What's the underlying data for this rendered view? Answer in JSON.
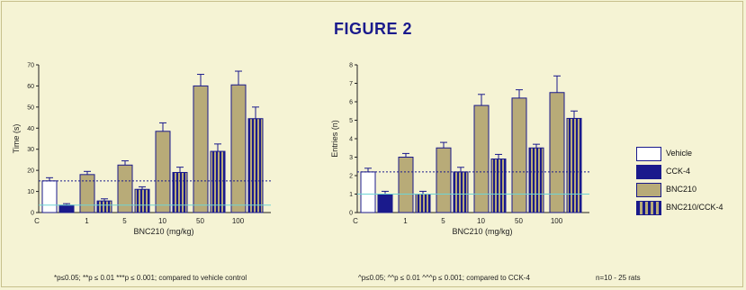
{
  "figure": {
    "title": "FIGURE 2"
  },
  "colors": {
    "vehicle": "#ffffff",
    "cck4": "#1a1a8c",
    "bnc210": "#b8ab78",
    "stripe_dark": "#1a1a8c",
    "stripe_light": "#b8ab78",
    "outline": "#1a1a8c",
    "dashed_ref": "#1a1a8c",
    "cyan_ref": "#6ed4d4"
  },
  "legend": {
    "items": [
      {
        "key": "vehicle",
        "label": "Vehicle"
      },
      {
        "key": "cck4",
        "label": "CCK-4"
      },
      {
        "key": "bnc210",
        "label": "BNC210"
      },
      {
        "key": "combo",
        "label": "BNC210/CCK-4"
      }
    ]
  },
  "footnotes": {
    "vehicle_note": "*p≤0.05; **p ≤ 0.01 ***p ≤ 0.001; compared to vehicle control",
    "cck_note": "^p≤0.05; ^^p ≤ 0.01 ^^^p ≤ 0.001; compared to CCK-4",
    "n_note": "n=10 - 25 rats"
  },
  "chart_data": [
    {
      "type": "bar",
      "xlabel": "BNC210 (mg/kg)",
      "ylabel": "Time (s)",
      "ylim": [
        0,
        70
      ],
      "yticks": [
        0,
        10,
        20,
        30,
        40,
        50,
        60,
        70
      ],
      "groups": [
        "C",
        "1",
        "5",
        "10",
        "50",
        "100"
      ],
      "bars": [
        {
          "series": "Vehicle",
          "group": "C",
          "value": 15,
          "error": 1.5
        },
        {
          "series": "CCK-4",
          "group": "C",
          "value": 3.5,
          "error": 0.7
        },
        {
          "series": "BNC210",
          "group": "1",
          "value": 18,
          "error": 1.5
        },
        {
          "series": "BNC210/CCK-4",
          "group": "1",
          "value": 5.5,
          "error": 1
        },
        {
          "series": "BNC210",
          "group": "5",
          "value": 22.5,
          "error": 2
        },
        {
          "series": "BNC210/CCK-4",
          "group": "5",
          "value": 11,
          "error": 1.2
        },
        {
          "series": "BNC210",
          "group": "10",
          "value": 38.5,
          "error": 4
        },
        {
          "series": "BNC210/CCK-4",
          "group": "10",
          "value": 19,
          "error": 2.5
        },
        {
          "series": "BNC210",
          "group": "50",
          "value": 60,
          "error": 5.5
        },
        {
          "series": "BNC210/CCK-4",
          "group": "50",
          "value": 29,
          "error": 3.5
        },
        {
          "series": "BNC210",
          "group": "100",
          "value": 60.5,
          "error": 6.5
        },
        {
          "series": "BNC210/CCK-4",
          "group": "100",
          "value": 44.5,
          "error": 5.5
        }
      ],
      "reference_lines": [
        {
          "value": 15,
          "style": "dashed",
          "color_key": "dashed_ref"
        },
        {
          "value": 3.5,
          "style": "solid",
          "color_key": "cyan_ref"
        }
      ]
    },
    {
      "type": "bar",
      "xlabel": "BNC210 (mg/kg)",
      "ylabel": "Entries (n)",
      "ylim": [
        0,
        8
      ],
      "yticks": [
        0,
        1,
        2,
        3,
        4,
        5,
        6,
        7,
        8
      ],
      "groups": [
        "C",
        "1",
        "5",
        "10",
        "50",
        "100"
      ],
      "bars": [
        {
          "series": "Vehicle",
          "group": "C",
          "value": 2.2,
          "error": 0.2
        },
        {
          "series": "CCK-4",
          "group": "C",
          "value": 1,
          "error": 0.15
        },
        {
          "series": "BNC210",
          "group": "1",
          "value": 3,
          "error": 0.2
        },
        {
          "series": "BNC210/CCK-4",
          "group": "1",
          "value": 1,
          "error": 0.15
        },
        {
          "series": "BNC210",
          "group": "5",
          "value": 3.5,
          "error": 0.3
        },
        {
          "series": "BNC210/CCK-4",
          "group": "5",
          "value": 2.2,
          "error": 0.25
        },
        {
          "series": "BNC210",
          "group": "10",
          "value": 5.8,
          "error": 0.6
        },
        {
          "series": "BNC210/CCK-4",
          "group": "10",
          "value": 2.9,
          "error": 0.25
        },
        {
          "series": "BNC210",
          "group": "50",
          "value": 6.2,
          "error": 0.45
        },
        {
          "series": "BNC210/CCK-4",
          "group": "50",
          "value": 3.5,
          "error": 0.2
        },
        {
          "series": "BNC210",
          "group": "100",
          "value": 6.5,
          "error": 0.9
        },
        {
          "series": "BNC210/CCK-4",
          "group": "100",
          "value": 5.1,
          "error": 0.4
        }
      ],
      "reference_lines": [
        {
          "value": 2.2,
          "style": "dashed",
          "color_key": "dashed_ref"
        },
        {
          "value": 1,
          "style": "solid",
          "color_key": "cyan_ref"
        }
      ]
    }
  ]
}
